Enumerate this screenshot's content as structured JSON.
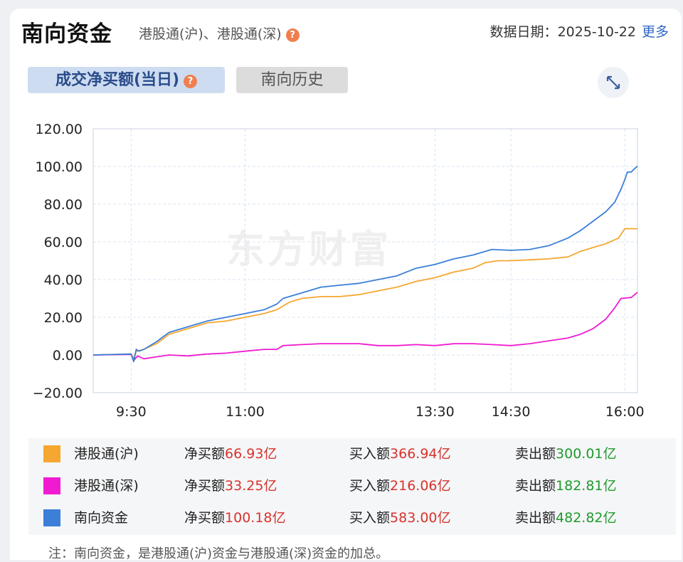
{
  "header": {
    "title": "南向资金",
    "subtitle": "港股通(沪)、港股通(深)",
    "help_glyph": "?",
    "date_label": "数据日期：",
    "date_value": "2025-10-22",
    "more_link": "更多"
  },
  "tabs": [
    {
      "label": "成交净买额(当日)",
      "active": true
    },
    {
      "label": "南向历史",
      "active": false
    }
  ],
  "watermark": "东方财富",
  "chart_data": {
    "type": "line",
    "ylim": [
      -20,
      120
    ],
    "yticks": [
      "120.00",
      "100.00",
      "80.00",
      "60.00",
      "40.00",
      "20.00",
      "0.00",
      "−20.00"
    ],
    "ytick_values": [
      120,
      100,
      80,
      60,
      40,
      20,
      0,
      -20
    ],
    "x_domain": [
      "09:00",
      "16:10"
    ],
    "xticks": [
      {
        "label": "9:30",
        "time": "09:30"
      },
      {
        "label": "11:00",
        "time": "11:00"
      },
      {
        "label": "13:30",
        "time": "13:30"
      },
      {
        "label": "14:30",
        "time": "14:30"
      },
      {
        "label": "16:00",
        "time": "16:00"
      }
    ],
    "grid": true,
    "series": [
      {
        "name": "港股通(沪)",
        "color": "#f5a731",
        "points": [
          [
            "09:00",
            0
          ],
          [
            "09:30",
            0.5
          ],
          [
            "09:32",
            -2
          ],
          [
            "09:34",
            2
          ],
          [
            "09:40",
            3
          ],
          [
            "09:50",
            6
          ],
          [
            "10:00",
            11
          ],
          [
            "10:15",
            14
          ],
          [
            "10:30",
            17
          ],
          [
            "10:45",
            18
          ],
          [
            "11:00",
            20
          ],
          [
            "11:15",
            22
          ],
          [
            "11:25",
            24
          ],
          [
            "11:30",
            26
          ],
          [
            "11:35",
            28
          ],
          [
            "11:45",
            30
          ],
          [
            "12:00",
            31
          ],
          [
            "12:15",
            31
          ],
          [
            "12:30",
            32
          ],
          [
            "12:45",
            34
          ],
          [
            "13:00",
            36
          ],
          [
            "13:15",
            39
          ],
          [
            "13:30",
            41
          ],
          [
            "13:45",
            44
          ],
          [
            "14:00",
            46
          ],
          [
            "14:10",
            49
          ],
          [
            "14:20",
            50
          ],
          [
            "14:30",
            50
          ],
          [
            "14:45",
            50.5
          ],
          [
            "15:00",
            51
          ],
          [
            "15:15",
            52
          ],
          [
            "15:25",
            55
          ],
          [
            "15:35",
            57
          ],
          [
            "15:45",
            59
          ],
          [
            "15:55",
            62
          ],
          [
            "16:00",
            67
          ],
          [
            "16:10",
            66.93
          ]
        ]
      },
      {
        "name": "港股通(深)",
        "color": "#f01bd0",
        "points": [
          [
            "09:00",
            0
          ],
          [
            "09:30",
            0.3
          ],
          [
            "09:32",
            -3
          ],
          [
            "09:35",
            -0.5
          ],
          [
            "09:40",
            -2
          ],
          [
            "09:50",
            -1
          ],
          [
            "10:00",
            0
          ],
          [
            "10:15",
            -0.5
          ],
          [
            "10:30",
            0.5
          ],
          [
            "10:45",
            1
          ],
          [
            "11:00",
            2
          ],
          [
            "11:15",
            3
          ],
          [
            "11:25",
            3
          ],
          [
            "11:30",
            5
          ],
          [
            "11:45",
            5.5
          ],
          [
            "12:00",
            6
          ],
          [
            "12:15",
            6
          ],
          [
            "12:30",
            6
          ],
          [
            "12:45",
            5
          ],
          [
            "13:00",
            5
          ],
          [
            "13:15",
            5.5
          ],
          [
            "13:30",
            5
          ],
          [
            "13:45",
            6
          ],
          [
            "14:00",
            6
          ],
          [
            "14:15",
            5.5
          ],
          [
            "14:30",
            5
          ],
          [
            "14:45",
            6
          ],
          [
            "15:00",
            7.5
          ],
          [
            "15:15",
            9
          ],
          [
            "15:25",
            11
          ],
          [
            "15:35",
            14
          ],
          [
            "15:45",
            19
          ],
          [
            "15:52",
            25
          ],
          [
            "15:57",
            30
          ],
          [
            "16:05",
            30.5
          ],
          [
            "16:10",
            33.25
          ]
        ]
      },
      {
        "name": "南向资金",
        "color": "#3b7fd8",
        "points": [
          [
            "09:00",
            0
          ],
          [
            "09:30",
            0.5
          ],
          [
            "09:32",
            -3.5
          ],
          [
            "09:34",
            3
          ],
          [
            "09:36",
            2
          ],
          [
            "09:40",
            3
          ],
          [
            "09:50",
            7
          ],
          [
            "10:00",
            12
          ],
          [
            "10:15",
            15
          ],
          [
            "10:30",
            18
          ],
          [
            "10:45",
            20
          ],
          [
            "11:00",
            22
          ],
          [
            "11:15",
            24
          ],
          [
            "11:25",
            27
          ],
          [
            "11:30",
            30
          ],
          [
            "11:35",
            31
          ],
          [
            "11:45",
            33
          ],
          [
            "12:00",
            36
          ],
          [
            "12:15",
            37
          ],
          [
            "12:30",
            38
          ],
          [
            "12:45",
            40
          ],
          [
            "13:00",
            42
          ],
          [
            "13:15",
            46
          ],
          [
            "13:30",
            48
          ],
          [
            "13:45",
            51
          ],
          [
            "14:00",
            53
          ],
          [
            "14:15",
            56
          ],
          [
            "14:30",
            55.5
          ],
          [
            "14:45",
            56
          ],
          [
            "15:00",
            58
          ],
          [
            "15:15",
            62
          ],
          [
            "15:25",
            66
          ],
          [
            "15:35",
            71
          ],
          [
            "15:45",
            76
          ],
          [
            "15:52",
            81
          ],
          [
            "15:57",
            88
          ],
          [
            "16:00",
            93
          ],
          [
            "16:02",
            97
          ],
          [
            "16:05",
            97
          ],
          [
            "16:08",
            99
          ],
          [
            "16:10",
            100.18
          ]
        ]
      }
    ]
  },
  "legend": [
    {
      "name": "港股通(沪)",
      "color": "#f5a731",
      "net_label": "净买额",
      "net_value": "66.93亿",
      "buy_label": "买入额",
      "buy_value": "366.94亿",
      "sell_label": "卖出额",
      "sell_value": "300.01亿"
    },
    {
      "name": "港股通(深)",
      "color": "#f01bd0",
      "net_label": "净买额",
      "net_value": "33.25亿",
      "buy_label": "买入额",
      "buy_value": "216.06亿",
      "sell_label": "卖出额",
      "sell_value": "182.81亿"
    },
    {
      "name": "南向资金",
      "color": "#3b7fd8",
      "net_label": "净买额",
      "net_value": "100.18亿",
      "buy_label": "买入额",
      "buy_value": "583.00亿",
      "sell_label": "卖出额",
      "sell_value": "482.82亿"
    }
  ],
  "note": "注：南向资金，是港股通(沪)资金与港股通(深)资金的加总。"
}
